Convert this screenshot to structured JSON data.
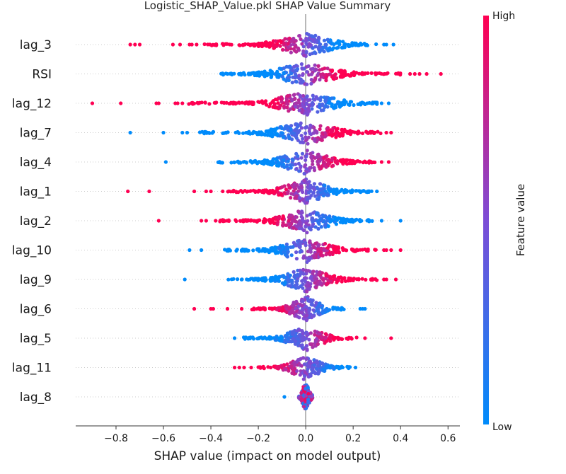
{
  "chart_data": {
    "type": "scatter",
    "subtype": "shap-beeswarm",
    "title": "Logistic_SHAP_Value.pkl SHAP Value Summary",
    "xlabel": "SHAP value (impact on model output)",
    "xlim": [
      -0.97,
      0.65
    ],
    "xticks": [
      -0.8,
      -0.6,
      -0.4,
      -0.2,
      0.0,
      0.2,
      0.4,
      0.6
    ],
    "xtick_labels": [
      "−0.8",
      "−0.6",
      "−0.4",
      "−0.2",
      "0.0",
      "0.2",
      "0.4",
      "0.6"
    ],
    "colorbar": {
      "label": "Feature value",
      "high_label": "High",
      "low_label": "Low",
      "high_color": "#ff0052",
      "low_color": "#008bfb"
    },
    "grid": false,
    "features": [
      {
        "name": "lag_3",
        "min": -0.74,
        "max": 0.37,
        "high_side": "negative",
        "core": [
          -0.45,
          0.3
        ],
        "outliers_high": [
          -0.74,
          -0.72,
          -0.7,
          -0.56,
          -0.53,
          -0.49,
          -0.48,
          -0.46
        ],
        "outliers_low": [
          0.33,
          0.34,
          0.37
        ]
      },
      {
        "name": "RSI",
        "min": -0.38,
        "max": 0.57,
        "high_side": "positive",
        "core": [
          -0.37,
          0.42
        ],
        "outliers_high": [
          0.44,
          0.46,
          0.48,
          0.51,
          0.57
        ],
        "outliers_low": []
      },
      {
        "name": "lag_12",
        "min": -0.9,
        "max": 0.35,
        "high_side": "negative",
        "core": [
          -0.5,
          0.3
        ],
        "outliers_high": [
          -0.9,
          -0.78,
          -0.63,
          -0.62,
          -0.55,
          -0.54,
          -0.52
        ],
        "outliers_low": [
          0.32,
          0.35
        ]
      },
      {
        "name": "lag_7",
        "min": -0.74,
        "max": 0.36,
        "high_side": "positive",
        "core": [
          -0.45,
          0.33
        ],
        "outliers_high": [
          0.34,
          0.36
        ],
        "outliers_low": [
          -0.74,
          -0.6,
          -0.52,
          -0.5
        ]
      },
      {
        "name": "lag_4",
        "min": -0.59,
        "max": 0.35,
        "high_side": "positive",
        "core": [
          -0.38,
          0.3
        ],
        "outliers_high": [
          0.32,
          0.35
        ],
        "outliers_low": [
          -0.59
        ]
      },
      {
        "name": "lag_1",
        "min": -0.75,
        "max": 0.3,
        "high_side": "negative",
        "core": [
          -0.33,
          0.28
        ],
        "outliers_high": [
          -0.75,
          -0.66,
          -0.47,
          -0.42,
          -0.4,
          -0.35
        ],
        "outliers_low": [
          0.3
        ]
      },
      {
        "name": "lag_2",
        "min": -0.62,
        "max": 0.4,
        "high_side": "negative",
        "core": [
          -0.38,
          0.28
        ],
        "outliers_high": [
          -0.62,
          -0.44,
          -0.42,
          -0.38,
          -0.36
        ],
        "outliers_low": [
          0.32,
          0.4
        ]
      },
      {
        "name": "lag_10",
        "min": -0.49,
        "max": 0.4,
        "high_side": "positive",
        "core": [
          -0.35,
          0.3
        ],
        "outliers_high": [
          0.33,
          0.34,
          0.36,
          0.4
        ],
        "outliers_low": [
          -0.49,
          -0.44
        ]
      },
      {
        "name": "lag_9",
        "min": -0.51,
        "max": 0.38,
        "high_side": "positive",
        "core": [
          -0.33,
          0.3
        ],
        "outliers_high": [
          0.33,
          0.34,
          0.38
        ],
        "outliers_low": [
          -0.51
        ]
      },
      {
        "name": "lag_6",
        "min": -0.47,
        "max": 0.25,
        "high_side": "negative",
        "core": [
          -0.23,
          0.17
        ],
        "outliers_high": [
          -0.47,
          -0.4,
          -0.39,
          -0.33,
          -0.27
        ],
        "outliers_low": [
          0.23,
          0.24,
          0.25
        ]
      },
      {
        "name": "lag_5",
        "min": -0.3,
        "max": 0.36,
        "high_side": "positive",
        "core": [
          -0.27,
          0.22
        ],
        "outliers_high": [
          0.25,
          0.36
        ],
        "outliers_low": [
          -0.3
        ]
      },
      {
        "name": "lag_11",
        "min": -0.3,
        "max": 0.21,
        "high_side": "negative",
        "core": [
          -0.2,
          0.19
        ],
        "outliers_high": [
          -0.3,
          -0.28,
          -0.26,
          -0.23
        ],
        "outliers_low": [
          0.21
        ]
      },
      {
        "name": "lag_8",
        "min": -0.09,
        "max": 0.03,
        "high_side": "mixed",
        "core": [
          -0.03,
          0.03
        ],
        "outliers_high": [],
        "outliers_low": [
          -0.09
        ]
      }
    ]
  }
}
